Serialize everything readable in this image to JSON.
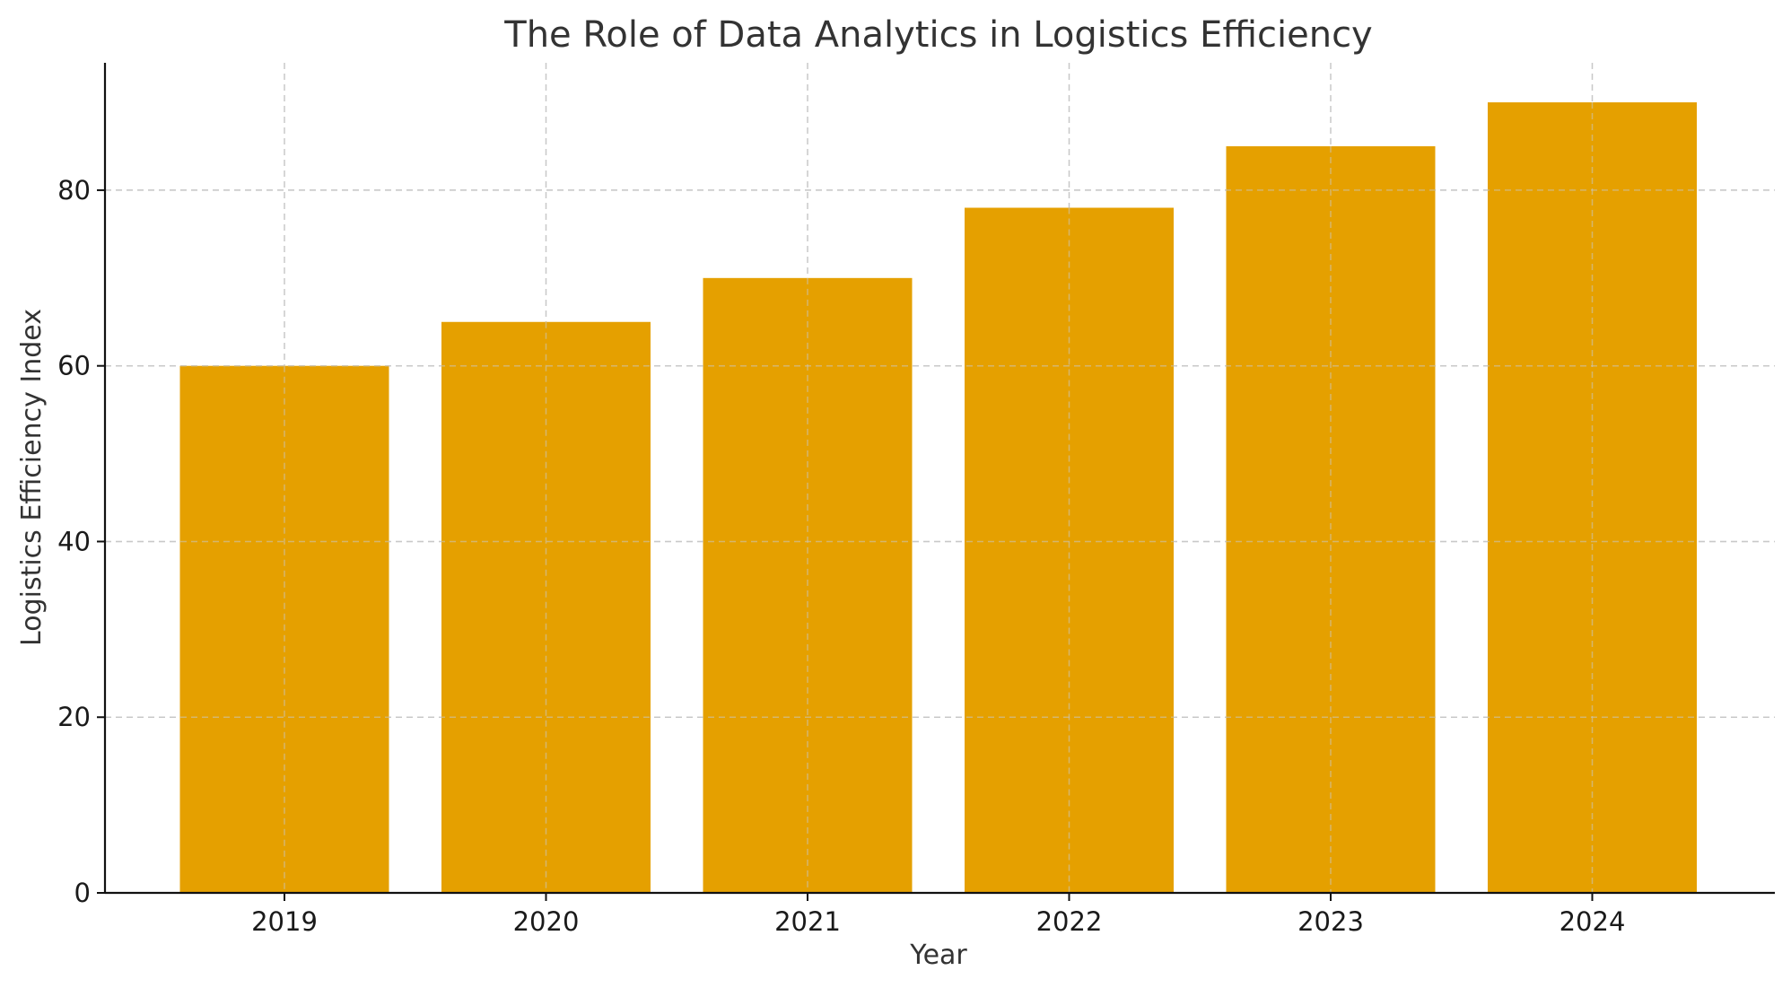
{
  "chart_data": {
    "type": "bar",
    "title": "The Role of Data Analytics in Logistics Efficiency",
    "xlabel": "Year",
    "ylabel": "Logistics Efficiency Index",
    "categories": [
      "2019",
      "2020",
      "2021",
      "2022",
      "2023",
      "2024"
    ],
    "values": [
      60,
      65,
      70,
      78,
      85,
      90
    ],
    "yticks": [
      0,
      20,
      40,
      60,
      80
    ],
    "ylim": [
      0,
      94.5
    ],
    "grid": true,
    "bar_color": "#e5a000",
    "legend": "none"
  }
}
